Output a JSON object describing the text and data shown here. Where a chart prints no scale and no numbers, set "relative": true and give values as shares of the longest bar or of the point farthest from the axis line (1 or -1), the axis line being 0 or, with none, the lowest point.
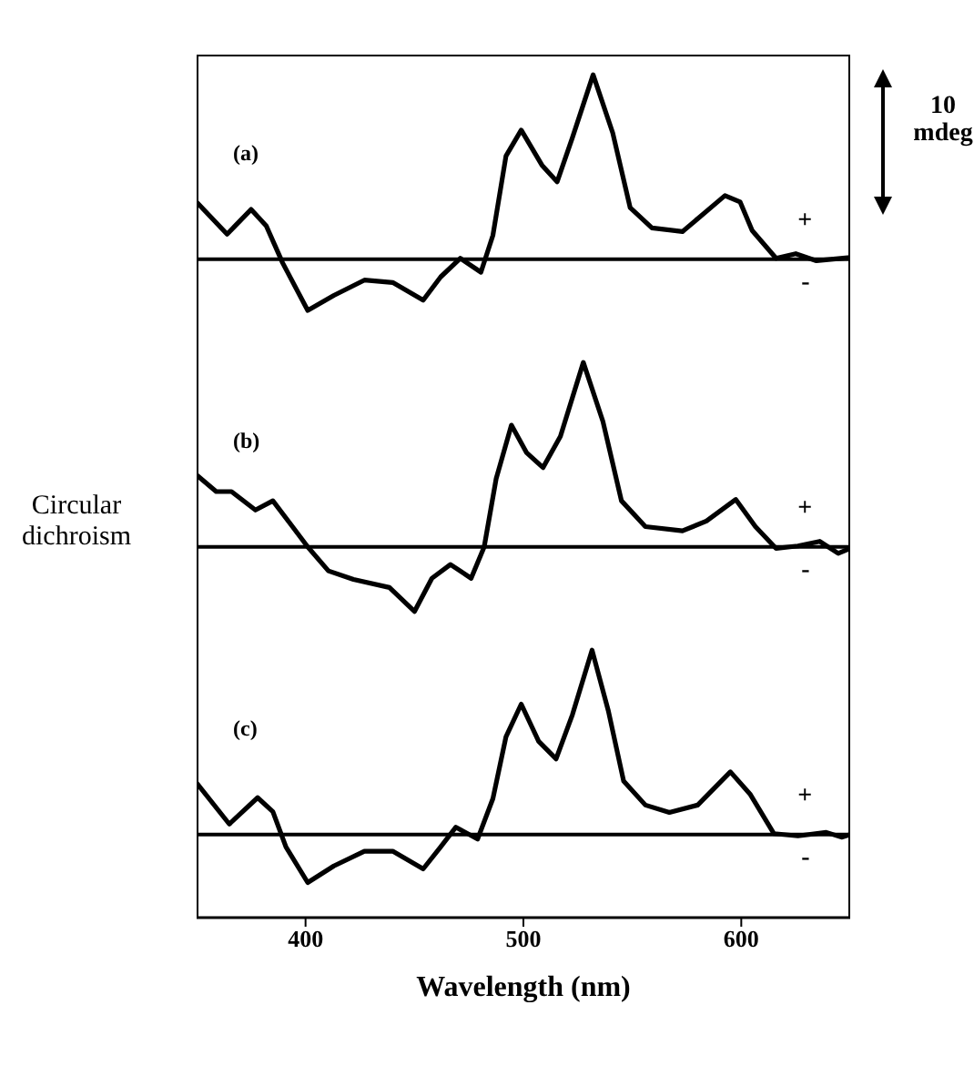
{
  "chart_data": [
    {
      "type": "line",
      "relative": true,
      "xlim": [
        350,
        650
      ],
      "xticks": [
        400,
        500,
        600
      ],
      "tick_labels": false,
      "marker": "none",
      "line_style": "solid",
      "annotations": [
        "(a)",
        "+",
        "-",
        "10 mdeg"
      ],
      "ref_lines": [
        {
          "axis": "y",
          "value": 0
        }
      ],
      "x": [
        350,
        364,
        375,
        382,
        389.5,
        401,
        413,
        427,
        440,
        454,
        462,
        471,
        480.5,
        486,
        492,
        499,
        508.5,
        515.5,
        522.5,
        532,
        541,
        549,
        559,
        573,
        581,
        592.5,
        599.5,
        605,
        616,
        625,
        634.5,
        650
      ],
      "series": [
        {
          "color": "#000000",
          "values": [
            0.31,
            0.136,
            0.27,
            0.18,
            -0.02,
            -0.277,
            -0.196,
            -0.113,
            -0.126,
            -0.222,
            -0.096,
            0.005,
            -0.07,
            0.13,
            0.56,
            0.7,
            0.51,
            0.42,
            0.66,
            1.0,
            0.685,
            0.28,
            0.17,
            0.15,
            0.23,
            0.345,
            0.31,
            0.156,
            0.005,
            0.03,
            -0.008,
            0.01
          ]
        }
      ]
    },
    {
      "type": "line",
      "relative": true,
      "xlim": [
        350,
        650
      ],
      "xticks": [
        400,
        500,
        600
      ],
      "tick_labels": false,
      "marker": "none",
      "line_style": "solid",
      "ylabel": "Circular dichroism",
      "annotations": [
        "(b)",
        "+",
        "-"
      ],
      "ref_lines": [
        {
          "axis": "y",
          "value": 0
        }
      ],
      "x": [
        350,
        359,
        366,
        377,
        385,
        394,
        401,
        410.5,
        422,
        438.5,
        450,
        458,
        466.5,
        476,
        482,
        487.5,
        494.5,
        501.5,
        509,
        517,
        527.5,
        536.5,
        545,
        556,
        573,
        584,
        597.5,
        606.5,
        616,
        626,
        636,
        644.5,
        650
      ],
      "series": [
        {
          "color": "#000000",
          "values": [
            0.39,
            0.3,
            0.3,
            0.2,
            0.25,
            0.11,
            0,
            -0.13,
            -0.176,
            -0.22,
            -0.35,
            -0.17,
            -0.095,
            -0.17,
            0,
            0.37,
            0.66,
            0.51,
            0.43,
            0.6,
            1.0,
            0.68,
            0.25,
            0.11,
            0.087,
            0.14,
            0.257,
            0.11,
            -0.008,
            0.005,
            0.03,
            -0.035,
            -0.008
          ]
        }
      ]
    },
    {
      "type": "line",
      "relative": true,
      "xlim": [
        350,
        650
      ],
      "xticks": [
        400,
        500,
        600
      ],
      "tick_labels": "x",
      "marker": "none",
      "line_style": "solid",
      "xlabel": "Wavelength (nm)",
      "annotations": [
        "(c)",
        "+",
        "-"
      ],
      "ref_lines": [
        {
          "axis": "y",
          "value": 0
        }
      ],
      "x": [
        350,
        365,
        378,
        385,
        391,
        401,
        413,
        427,
        440,
        454,
        462,
        469,
        479,
        486,
        492,
        499,
        507,
        515,
        522.5,
        531.5,
        539,
        546,
        556,
        567,
        580,
        595,
        604,
        615,
        626,
        639,
        646,
        650
      ],
      "series": [
        {
          "color": "#000000",
          "values": [
            0.28,
            0.057,
            0.2,
            0.124,
            -0.067,
            -0.26,
            -0.17,
            -0.09,
            -0.09,
            -0.186,
            -0.067,
            0.04,
            -0.024,
            0.195,
            0.53,
            0.707,
            0.505,
            0.41,
            0.65,
            1.0,
            0.67,
            0.29,
            0.16,
            0.12,
            0.16,
            0.34,
            0.22,
            0.005,
            -0.007,
            0.012,
            -0.014,
            0
          ]
        }
      ]
    }
  ]
}
